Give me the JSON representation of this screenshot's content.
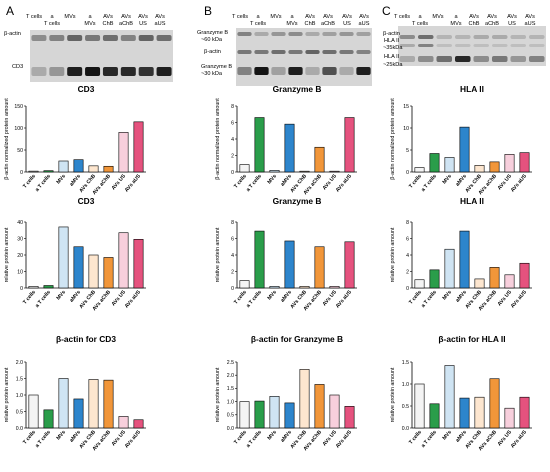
{
  "panel_labels": [
    "A",
    "B",
    "C"
  ],
  "colors": {
    "T cells": "#f4f4f4",
    "a T cells": "#2a9d4a",
    "MVs": "#cfe4f3",
    "aMVs": "#2d85cc",
    "AVs ChB": "#fde6cf",
    "AVs aChB": "#f1963a",
    "AVs US": "#f7cfdc",
    "AVs aUS": "#e5527e"
  },
  "blots": [
    {
      "lanes": [
        {
          "top": "T cells",
          "bottom": ""
        },
        {
          "top": "a",
          "bottom": "T cells"
        },
        {
          "top": "MVs",
          "bottom": ""
        },
        {
          "top": "a",
          "bottom": "MVs"
        },
        {
          "top": "AVs",
          "bottom": "ChB"
        },
        {
          "top": "AVs",
          "bottom": "aChB"
        },
        {
          "top": "AVs",
          "bottom": "US"
        },
        {
          "top": "AVs",
          "bottom": "aUS"
        }
      ],
      "markers": [
        "β-actin",
        "CD3"
      ]
    },
    {
      "lanes": [
        {
          "top": "T cells",
          "bottom": ""
        },
        {
          "top": "a",
          "bottom": "T cells"
        },
        {
          "top": "MVs",
          "bottom": ""
        },
        {
          "top": "a",
          "bottom": "MVs"
        },
        {
          "top": "AVs",
          "bottom": "ChB"
        },
        {
          "top": "AVs",
          "bottom": "aChB"
        },
        {
          "top": "AVs",
          "bottom": "US"
        },
        {
          "top": "AVs",
          "bottom": "aUS"
        }
      ],
      "markers": [
        "Granzyme B",
        "~60 kDa",
        "β-actin",
        "Granzyme B",
        "~30 kDa"
      ]
    },
    {
      "lanes": [
        {
          "top": "T cells",
          "bottom": ""
        },
        {
          "top": "a",
          "bottom": "T cells"
        },
        {
          "top": "MVs",
          "bottom": ""
        },
        {
          "top": "a",
          "bottom": "MVs"
        },
        {
          "top": "AVs",
          "bottom": "ChB"
        },
        {
          "top": "AVs",
          "bottom": "aChB"
        },
        {
          "top": "AVs",
          "bottom": "US"
        },
        {
          "top": "AVs",
          "bottom": "aUS"
        }
      ],
      "markers": [
        "β-actin",
        "HLA II",
        "~35kDa",
        "HLA II",
        "~25kDa"
      ]
    }
  ],
  "chart_data": [
    {
      "type": "bar",
      "title": "CD3",
      "ylabel": "β-actin normalized protein amount",
      "ylim": [
        0,
        150
      ],
      "yticks": [
        0,
        50,
        100,
        150
      ],
      "categories": [
        "T cells",
        "a T cells",
        "MVs",
        "aMVs",
        "AVs ChB",
        "AVs aChB",
        "AVs US",
        "AVs aUS"
      ],
      "values": [
        2,
        3,
        25,
        28,
        14,
        13,
        90,
        114
      ]
    },
    {
      "type": "bar",
      "title": "Granzyme B",
      "ylabel": "β-actin normalized protein amount",
      "ylim": [
        0,
        8
      ],
      "yticks": [
        0,
        2,
        4,
        6,
        8
      ],
      "categories": [
        "T cells",
        "a T cells",
        "MVs",
        "aMVs",
        "AVs ChB",
        "AVs aChB",
        "AVs US",
        "AVs aUS"
      ],
      "values": [
        0.9,
        6.6,
        0.2,
        5.8,
        0.1,
        3.0,
        0.1,
        6.6
      ]
    },
    {
      "type": "bar",
      "title": "HLA II",
      "ylabel": "β-actin normalized protein amount",
      "ylim": [
        0,
        15
      ],
      "yticks": [
        0,
        5,
        10,
        15
      ],
      "categories": [
        "T cells",
        "a T cells",
        "MVs",
        "aMVs",
        "AVs ChB",
        "AVs aChB",
        "AVs US",
        "AVs aUS"
      ],
      "values": [
        1.0,
        4.2,
        3.3,
        10.2,
        1.5,
        2.3,
        4.0,
        4.4
      ]
    },
    {
      "type": "bar",
      "title": "CD3",
      "ylabel": "relative protein amount",
      "ylim": [
        0,
        40
      ],
      "yticks": [
        0,
        10,
        20,
        30,
        40
      ],
      "categories": [
        "T cells",
        "a T cells",
        "MVs",
        "aMVs",
        "AVs ChB",
        "AVs aChB",
        "AVs US",
        "AVs aUS"
      ],
      "values": [
        1,
        1.5,
        37,
        25,
        20,
        18.5,
        33.5,
        29.5
      ]
    },
    {
      "type": "bar",
      "title": "Granzyme B",
      "ylabel": "relative protein amount",
      "ylim": [
        0,
        8
      ],
      "yticks": [
        0,
        2,
        4,
        6,
        8
      ],
      "categories": [
        "T cells",
        "a T cells",
        "MVs",
        "aMVs",
        "AVs ChB",
        "AVs aChB",
        "AVs US",
        "AVs aUS"
      ],
      "values": [
        0.9,
        6.9,
        0.2,
        5.7,
        0.2,
        5.0,
        0.2,
        5.6
      ]
    },
    {
      "type": "bar",
      "title": "HLA II",
      "ylabel": "relative protein amount",
      "ylim": [
        0,
        8
      ],
      "yticks": [
        0,
        2,
        4,
        6,
        8
      ],
      "categories": [
        "T cells",
        "a T cells",
        "MVs",
        "aMVs",
        "AVs ChB",
        "AVs aChB",
        "AVs US",
        "AVs aUS"
      ],
      "values": [
        1.0,
        2.2,
        4.7,
        6.9,
        1.1,
        2.5,
        1.6,
        3.0
      ]
    },
    {
      "type": "bar",
      "title": "β-actin for CD3",
      "ylabel": "relative protein amount",
      "ylim": [
        0,
        2.0
      ],
      "yticks": [
        0.0,
        0.5,
        1.0,
        1.5,
        2.0
      ],
      "categories": [
        "T cells",
        "a T cells",
        "MVs",
        "aMVs",
        "AVs ChB",
        "AVs aChB",
        "AVs US",
        "AVs aUS"
      ],
      "values": [
        1.0,
        0.55,
        1.5,
        0.88,
        1.47,
        1.45,
        0.35,
        0.25
      ]
    },
    {
      "type": "bar",
      "title": "β-actin for Granzyme B",
      "ylabel": "relative protein amount",
      "ylim": [
        0,
        2.5
      ],
      "yticks": [
        0.0,
        0.5,
        1.0,
        1.5,
        2.0,
        2.5
      ],
      "categories": [
        "T cells",
        "a T cells",
        "MVs",
        "aMVs",
        "AVs ChB",
        "AVs aChB",
        "AVs US",
        "AVs aUS"
      ],
      "values": [
        1.0,
        1.02,
        1.2,
        0.95,
        2.22,
        1.65,
        1.25,
        0.82
      ]
    },
    {
      "type": "bar",
      "title": "β-actin for HLA II",
      "ylabel": "relative protein amount",
      "ylim": [
        0,
        1.5
      ],
      "yticks": [
        0.0,
        0.5,
        1.0,
        1.5
      ],
      "categories": [
        "T cells",
        "a T cells",
        "MVs",
        "aMVs",
        "AVs ChB",
        "AVs aChB",
        "AVs US",
        "AVs aUS"
      ],
      "values": [
        1.0,
        0.55,
        1.42,
        0.68,
        0.7,
        1.12,
        0.45,
        0.7
      ]
    }
  ]
}
